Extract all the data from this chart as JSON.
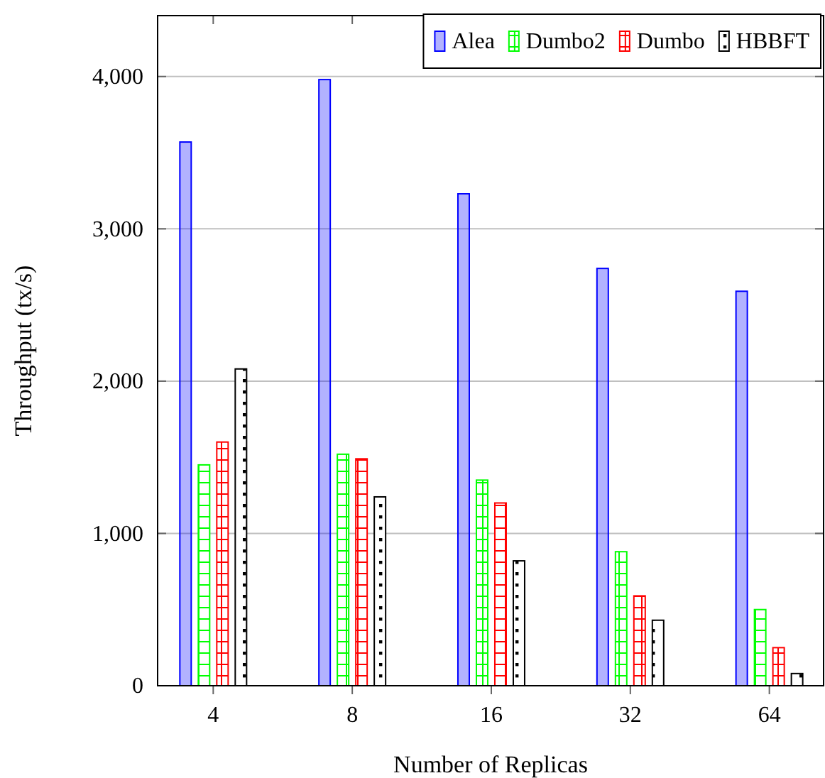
{
  "chart_data": {
    "type": "bar",
    "xlabel": "Number of Replicas",
    "ylabel": "Throughput (tx/s)",
    "categories": [
      "4",
      "8",
      "16",
      "32",
      "64"
    ],
    "series": [
      {
        "name": "Alea",
        "color": "#0000ff",
        "values": [
          3570,
          3980,
          3230,
          2740,
          2590
        ]
      },
      {
        "name": "Dumbo2",
        "color": "#00ff00",
        "values": [
          1450,
          1520,
          1350,
          880,
          500
        ]
      },
      {
        "name": "Dumbo",
        "color": "#ff0000",
        "values": [
          1600,
          1490,
          1200,
          590,
          250
        ]
      },
      {
        "name": "HBBFT",
        "color": "#000000",
        "values": [
          2080,
          1240,
          820,
          430,
          80
        ]
      }
    ],
    "ylim": [
      0,
      4400
    ],
    "yticks": [
      0,
      {
        "value": 1000,
        "label": "1,000"
      },
      {
        "value": 2000,
        "label": "2,000"
      },
      {
        "value": 3000,
        "label": "3,000"
      },
      {
        "value": 4000,
        "label": "4,000"
      }
    ],
    "grid": "y",
    "legend": "top right"
  }
}
